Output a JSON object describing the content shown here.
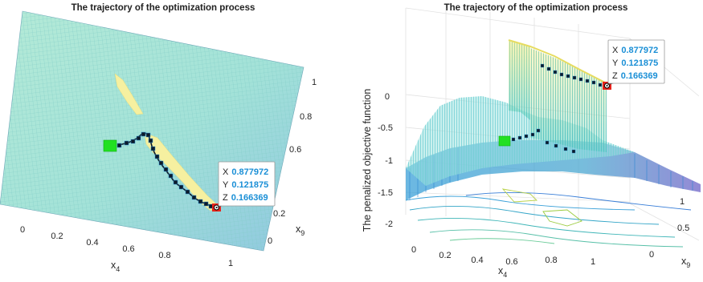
{
  "chart_data": [
    {
      "type": "surface",
      "title": "The trajectory of the optimization process",
      "xlabel": "x",
      "xlabel_sub": "4",
      "ylabel": "x",
      "ylabel_sub": "9",
      "x_ticks": [
        "0",
        "0.2",
        "0.4",
        "0.6",
        "0.8",
        "1"
      ],
      "y_ticks": [
        "0",
        "0.2",
        "0.4",
        "0.6",
        "0.8",
        "1"
      ],
      "xlim": [
        0,
        1
      ],
      "ylim": [
        0,
        1
      ],
      "view": "top-down",
      "trajectory": {
        "x": [
          0.42,
          0.5,
          0.55,
          0.6,
          0.62,
          0.64,
          0.66,
          0.69,
          0.72,
          0.76,
          0.8,
          0.84,
          0.877972
        ],
        "y": [
          0.58,
          0.6,
          0.62,
          0.65,
          0.62,
          0.56,
          0.5,
          0.44,
          0.38,
          0.32,
          0.26,
          0.2,
          0.121875
        ]
      },
      "start_marker": {
        "x": 0.42,
        "y": 0.58
      },
      "datatip": {
        "x_label": "X",
        "x": "0.877972",
        "y_label": "Y",
        "y": "0.121875",
        "z_label": "Z",
        "z": "0.166369"
      },
      "colors": {
        "surface": "#a8e6d8",
        "mesh": "#7fcfc8",
        "feasible": "#f6f0a0",
        "start": "#22e022",
        "path": "#0d1b2a",
        "end": "#e8221b"
      }
    },
    {
      "type": "surface",
      "title": "The trajectory of the optimization process",
      "xlabel": "x",
      "xlabel_sub": "4",
      "ylabel": "x",
      "ylabel_sub": "9",
      "zlabel": "The penalized objective function",
      "x_ticks": [
        "0",
        "0.2",
        "0.4",
        "0.6",
        "0.8",
        "1"
      ],
      "y_ticks": [
        "0",
        "0.5",
        "1"
      ],
      "z_ticks": [
        "0",
        "-0.5",
        "-1",
        "-1.5",
        "-2"
      ],
      "zlim": [
        -2.2,
        0.3
      ],
      "view": "3-D with contour floor",
      "trajectory": {
        "x": [
          0.42,
          0.5,
          0.55,
          0.6,
          0.64,
          0.7,
          0.76,
          0.82,
          0.877972
        ],
        "y": [
          0.58,
          0.6,
          0.62,
          0.6,
          0.5,
          0.4,
          0.3,
          0.2,
          0.121875
        ]
      },
      "datatip": {
        "x_label": "X",
        "x": "0.877972",
        "y_label": "Y",
        "y": "0.121875",
        "z_label": "Z",
        "z": "0.166369"
      },
      "colors": {
        "surface": "#9ee3e0",
        "peak": "#f2ec7a",
        "low": "#3a5fd9",
        "start": "#22e022",
        "path": "#0d1b2a",
        "end": "#e8221b"
      }
    }
  ]
}
